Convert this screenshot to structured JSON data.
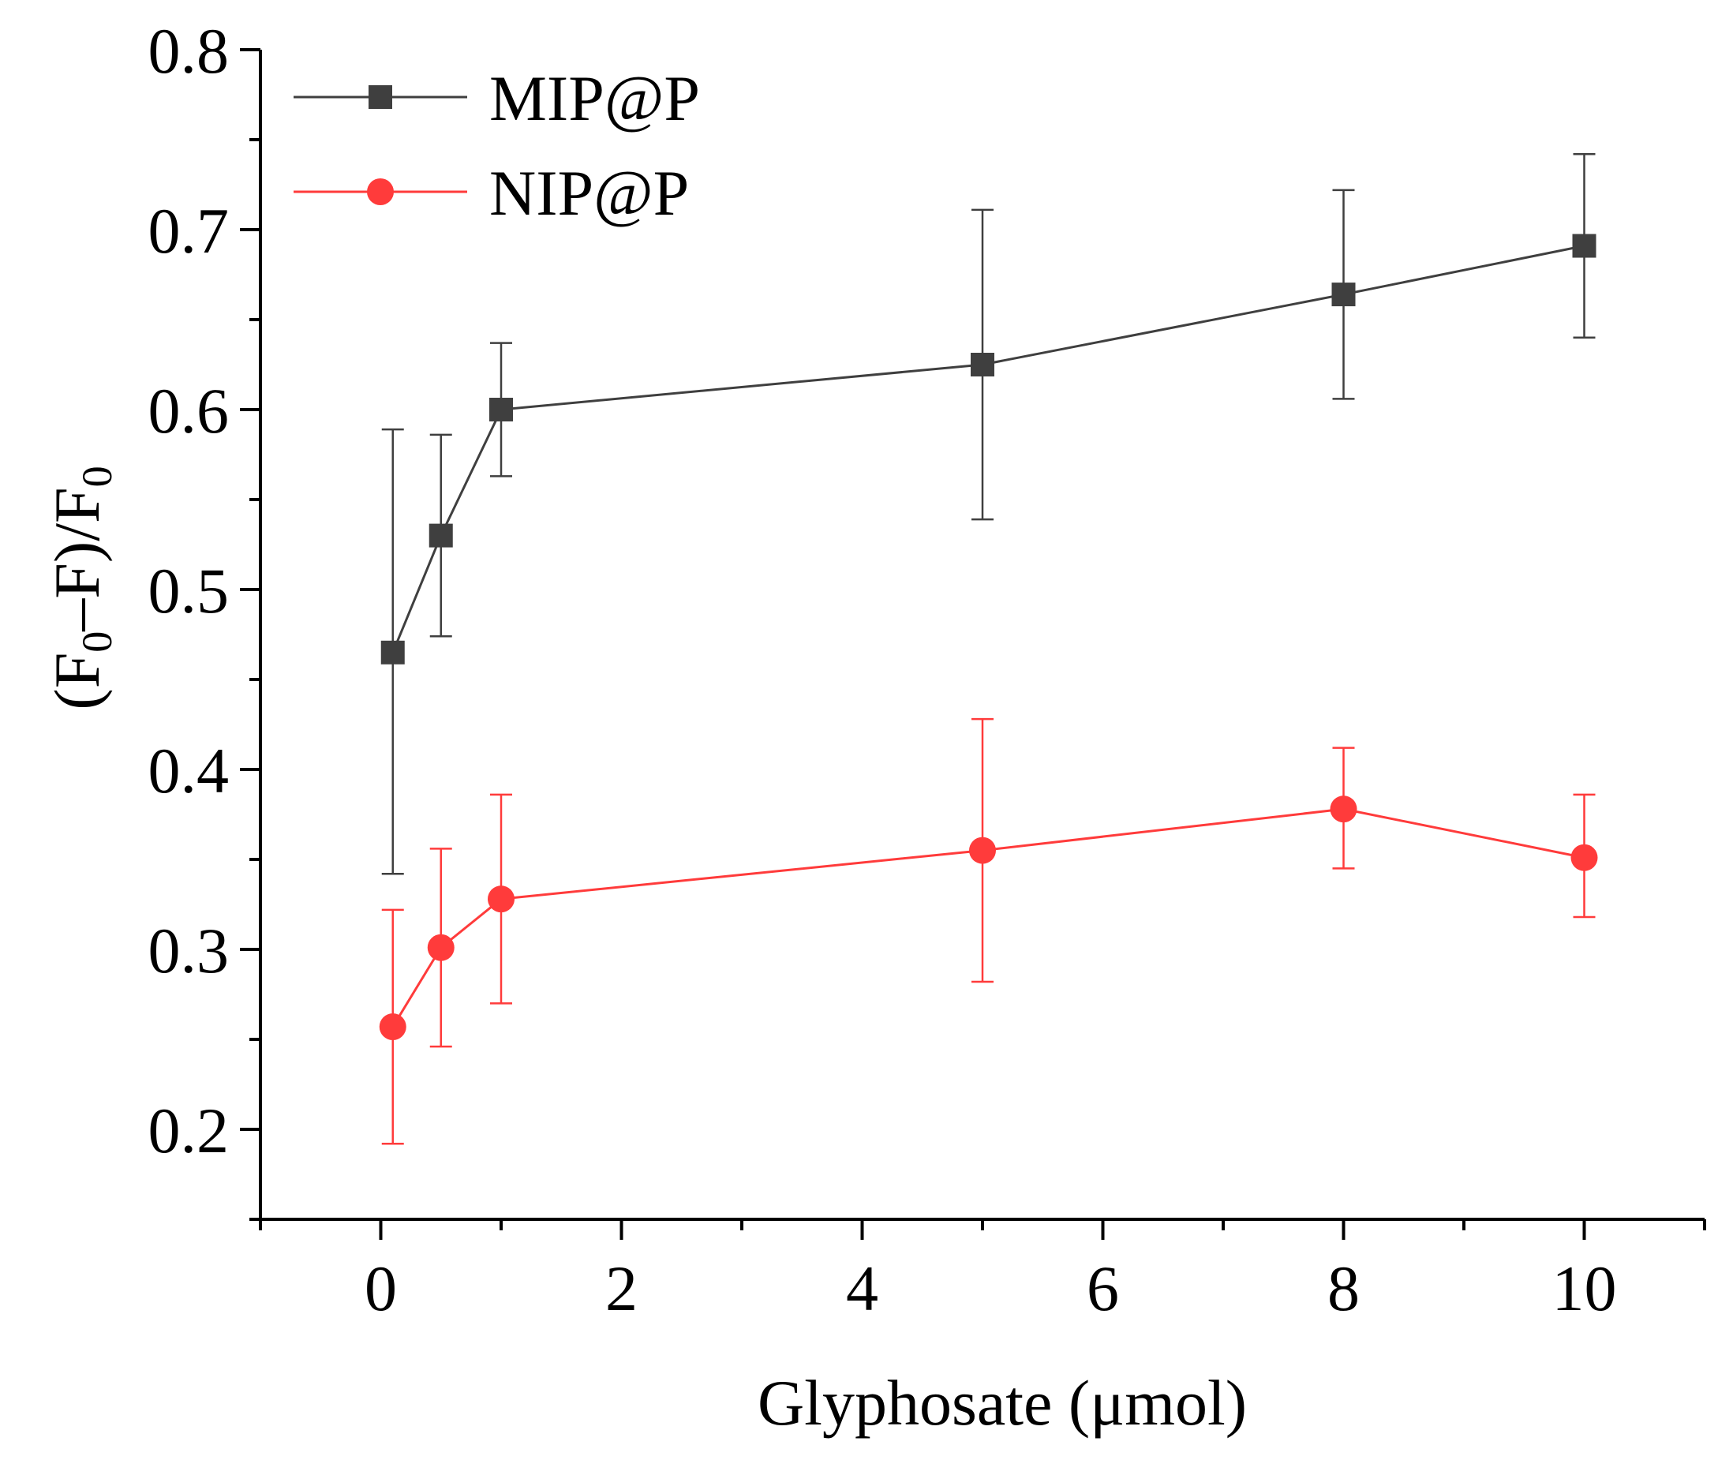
{
  "chart_data": {
    "type": "line",
    "title": "",
    "xlabel": "Glyphosate (μmol)",
    "ylabel_parts": [
      "(F",
      "0",
      "–F)/F",
      "0"
    ],
    "xlim": [
      -1,
      11
    ],
    "ylim": [
      0.15,
      0.8
    ],
    "x_major_ticks": [
      0,
      2,
      4,
      6,
      8,
      10
    ],
    "x_minor_ticks": [
      -1,
      1,
      3,
      5,
      7,
      9,
      11
    ],
    "y_major_ticks": [
      0.2,
      0.3,
      0.4,
      0.5,
      0.6,
      0.7,
      0.8
    ],
    "y_minor_ticks": [
      0.15,
      0.25,
      0.35,
      0.45,
      0.55,
      0.65,
      0.75
    ],
    "x_tick_labels": [
      "0",
      "2",
      "4",
      "6",
      "8",
      "10"
    ],
    "y_tick_labels": [
      "0.2",
      "0.3",
      "0.4",
      "0.5",
      "0.6",
      "0.7",
      "0.8"
    ],
    "legend_position": "top-left",
    "series": [
      {
        "name": "MIP@P",
        "color": "#3f3f3f",
        "marker": "square",
        "x": [
          0.1,
          0.5,
          1,
          5,
          8,
          10
        ],
        "y": [
          0.465,
          0.53,
          0.6,
          0.625,
          0.664,
          0.691
        ],
        "err_low": [
          0.342,
          0.474,
          0.563,
          0.539,
          0.606,
          0.64
        ],
        "err_high": [
          0.589,
          0.586,
          0.637,
          0.711,
          0.722,
          0.742
        ]
      },
      {
        "name": "NIP@P",
        "color": "#ff3b3b",
        "marker": "circle",
        "x": [
          0.1,
          0.5,
          1,
          5,
          8,
          10
        ],
        "y": [
          0.257,
          0.301,
          0.328,
          0.355,
          0.378,
          0.351
        ],
        "err_low": [
          0.192,
          0.246,
          0.27,
          0.282,
          0.345,
          0.318
        ],
        "err_high": [
          0.322,
          0.356,
          0.386,
          0.428,
          0.412,
          0.386
        ]
      }
    ]
  }
}
